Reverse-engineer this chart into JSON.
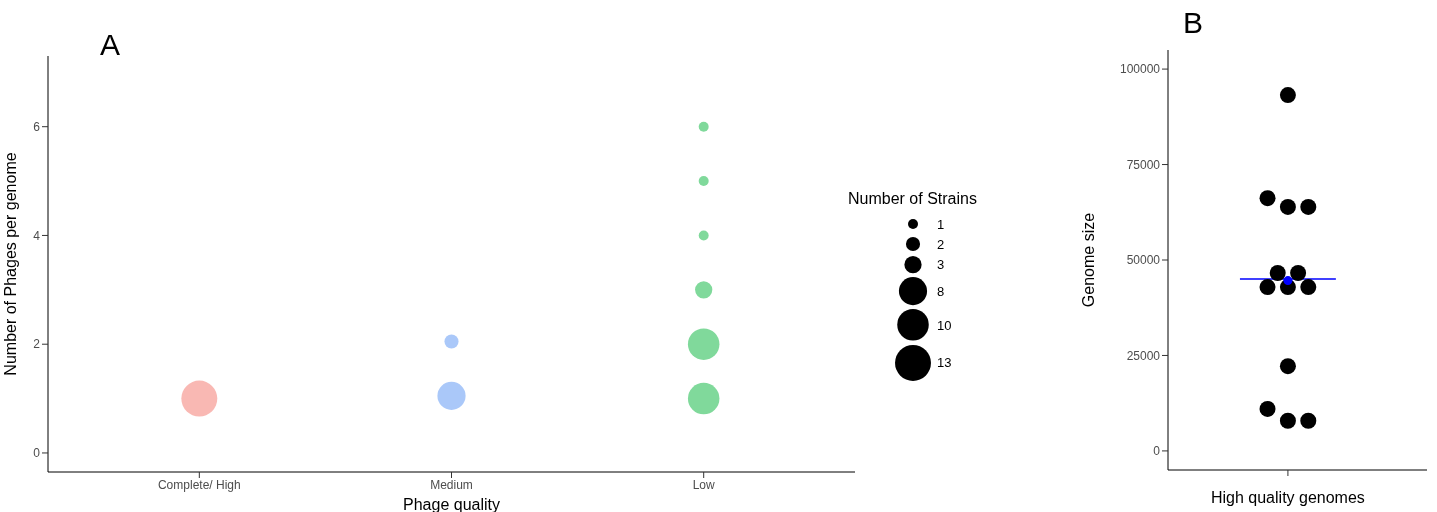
{
  "chart_data": [
    {
      "type": "bubble",
      "title": "A",
      "xlabel": "Phage quality",
      "ylabel": "Number of Phages per genome",
      "legend_title": "Number of Strains",
      "marker": "circle",
      "categories": [
        "Complete/ High",
        "Medium",
        "Low"
      ],
      "ylim": [
        -0.35,
        7.3
      ],
      "yticks": [
        0,
        2,
        4,
        6
      ],
      "size_legend": [
        1,
        2,
        3,
        8,
        10,
        13
      ],
      "series": [
        {
          "color": "#f9b8b3",
          "x": [
            "Complete/ High"
          ],
          "values": [
            1
          ],
          "sizes": [
            13
          ]
        },
        {
          "color": "#aac8f9",
          "x": [
            "Medium",
            "Medium"
          ],
          "values": [
            1.05,
            2.05
          ],
          "sizes": [
            8,
            2
          ]
        },
        {
          "color": "#80d99b",
          "x": [
            "Low",
            "Low",
            "Low",
            "Low",
            "Low",
            "Low"
          ],
          "values": [
            6,
            5,
            4,
            3,
            2,
            1
          ],
          "sizes": [
            1,
            1,
            1,
            3,
            10,
            10
          ]
        }
      ]
    },
    {
      "type": "scatter",
      "title": "B",
      "ylabel": "Genome size",
      "marker": "circle",
      "categories": [
        "High quality genomes"
      ],
      "ylim": [
        -5000,
        105000
      ],
      "yticks": [
        0,
        25000,
        50000,
        75000,
        100000
      ],
      "series": [
        {
          "color": "#000000",
          "x": [
            "High quality genomes",
            "High quality genomes",
            "High quality genomes",
            "High quality genomes",
            "High quality genomes",
            "High quality genomes",
            "High quality genomes",
            "High quality genomes",
            "High quality genomes",
            "High quality genomes",
            "High quality genomes",
            "High quality genomes",
            "High quality genomes"
          ],
          "values": [
            93200,
            66200,
            63900,
            63900,
            46600,
            46600,
            42900,
            42900,
            42900,
            22200,
            11000,
            7900,
            7900
          ]
        },
        {
          "color": "#0000ff",
          "x": [
            "High quality genomes"
          ],
          "values": [
            44600
          ]
        }
      ],
      "ref_lines": [
        {
          "axis": "y",
          "value": 45000,
          "color": "#0000ff"
        }
      ]
    }
  ]
}
